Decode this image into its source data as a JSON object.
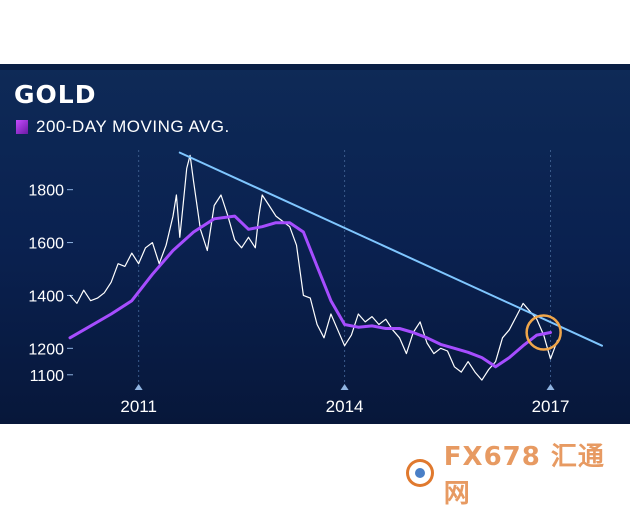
{
  "title": "GOLD",
  "legend_label": "200-DAY MOVING AVG.",
  "watermark": "FX678 汇通网",
  "colors": {
    "background": "#0a2150",
    "price_line": "#ffffff",
    "moving_avg": "#a64dff",
    "trendline": "#7fc6ff",
    "highlight_circle": "#f0a64a"
  },
  "chart_data": {
    "type": "line",
    "title": "GOLD",
    "xlabel": "",
    "ylabel": "",
    "x_ticks": [
      "2011",
      "2014",
      "2017"
    ],
    "y_ticks": [
      1100,
      1200,
      1400,
      1600,
      1800
    ],
    "xlim": [
      2010.0,
      2017.75
    ],
    "ylim": [
      1050,
      1950
    ],
    "grid": "vertical dotted",
    "series": [
      {
        "name": "GOLD",
        "x": [
          2010.0,
          2010.1,
          2010.2,
          2010.3,
          2010.4,
          2010.5,
          2010.6,
          2010.7,
          2010.8,
          2010.9,
          2011.0,
          2011.1,
          2011.2,
          2011.3,
          2011.4,
          2011.5,
          2011.55,
          2011.6,
          2011.65,
          2011.7,
          2011.75,
          2011.8,
          2011.9,
          2012.0,
          2012.1,
          2012.2,
          2012.3,
          2012.4,
          2012.5,
          2012.6,
          2012.7,
          2012.75,
          2012.8,
          2012.9,
          2013.0,
          2013.1,
          2013.2,
          2013.3,
          2013.4,
          2013.5,
          2013.6,
          2013.7,
          2013.8,
          2013.9,
          2014.0,
          2014.1,
          2014.2,
          2014.3,
          2014.4,
          2014.5,
          2014.6,
          2014.7,
          2014.8,
          2014.9,
          2015.0,
          2015.1,
          2015.2,
          2015.3,
          2015.4,
          2015.5,
          2015.6,
          2015.7,
          2015.8,
          2015.9,
          2016.0,
          2016.1,
          2016.2,
          2016.3,
          2016.4,
          2016.5,
          2016.6,
          2016.7,
          2016.8,
          2016.9,
          2017.0,
          2017.1
        ],
        "values": [
          1400,
          1370,
          1420,
          1380,
          1390,
          1410,
          1450,
          1520,
          1510,
          1560,
          1520,
          1580,
          1600,
          1520,
          1590,
          1700,
          1780,
          1620,
          1750,
          1880,
          1930,
          1830,
          1650,
          1570,
          1740,
          1780,
          1700,
          1610,
          1580,
          1620,
          1580,
          1700,
          1780,
          1740,
          1700,
          1680,
          1660,
          1590,
          1400,
          1390,
          1290,
          1240,
          1330,
          1270,
          1210,
          1250,
          1330,
          1300,
          1320,
          1290,
          1310,
          1270,
          1240,
          1180,
          1260,
          1300,
          1220,
          1180,
          1200,
          1190,
          1130,
          1110,
          1150,
          1110,
          1080,
          1120,
          1150,
          1240,
          1270,
          1320,
          1370,
          1340,
          1310,
          1250,
          1160,
          1230
        ]
      },
      {
        "name": "200-DAY MOVING AVG.",
        "x": [
          2010.0,
          2010.3,
          2010.6,
          2010.9,
          2011.2,
          2011.5,
          2011.8,
          2012.1,
          2012.4,
          2012.6,
          2012.8,
          2013.0,
          2013.2,
          2013.4,
          2013.6,
          2013.8,
          2014.0,
          2014.2,
          2014.4,
          2014.6,
          2014.8,
          2015.0,
          2015.2,
          2015.4,
          2015.6,
          2015.8,
          2016.0,
          2016.2,
          2016.4,
          2016.6,
          2016.8,
          2017.0
        ],
        "values": [
          1240,
          1285,
          1330,
          1380,
          1480,
          1570,
          1640,
          1690,
          1700,
          1650,
          1660,
          1675,
          1675,
          1640,
          1510,
          1380,
          1290,
          1280,
          1285,
          1275,
          1275,
          1260,
          1240,
          1215,
          1200,
          1185,
          1165,
          1130,
          1165,
          1210,
          1250,
          1260
        ]
      },
      {
        "name": "",
        "x": [
          2011.6,
          2017.75
        ],
        "values": [
          1940,
          1210
        ]
      }
    ],
    "annotations": [
      {
        "type": "circle",
        "x": 2016.9,
        "y": 1260
      }
    ]
  }
}
